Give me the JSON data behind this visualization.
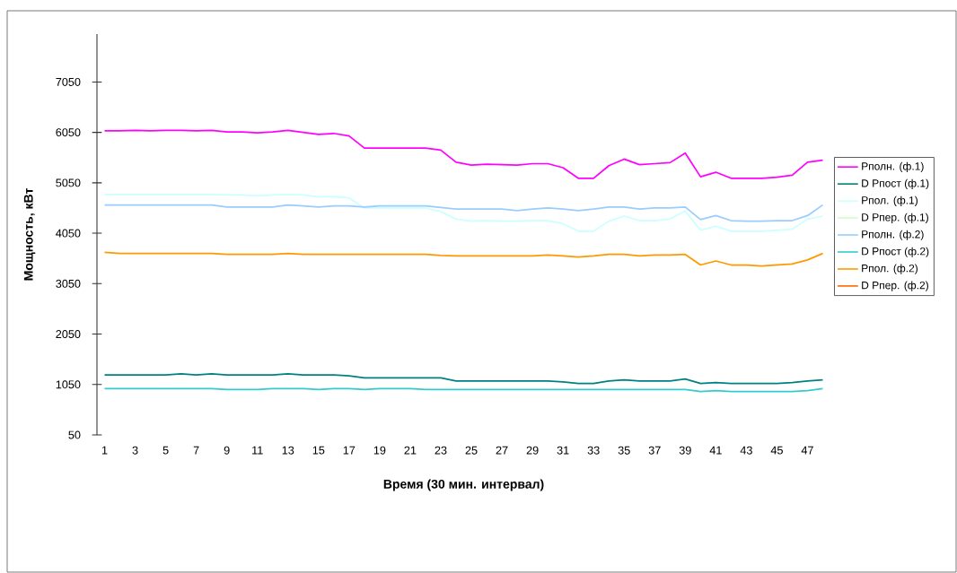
{
  "chart_data": {
    "type": "line",
    "xlabel": "Время (30 мин. интервал)",
    "ylabel": "Мощность, кВт",
    "categories": [
      "1",
      null,
      "3",
      null,
      "5",
      null,
      "7",
      null,
      "9",
      null,
      "11",
      null,
      "13",
      null,
      "15",
      null,
      "17",
      null,
      "19",
      null,
      "21",
      null,
      "23",
      null,
      "25",
      null,
      "27",
      null,
      "29",
      null,
      "31",
      null,
      "33",
      null,
      "35",
      null,
      "37",
      null,
      "39",
      null,
      "41",
      null,
      "43",
      null,
      "45",
      null,
      "47",
      null
    ],
    "ylim": [
      50,
      8000
    ],
    "yticks": [
      50,
      1050,
      2050,
      3050,
      4050,
      5050,
      6050,
      7050
    ],
    "grid": false,
    "legend": "right",
    "marker": "none",
    "line_style": "solid",
    "series": [
      {
        "name": "Рполн. (ф.1)",
        "color": "#ff00ff",
        "values": [
          6080,
          6080,
          6090,
          6080,
          6090,
          6090,
          6080,
          6090,
          6060,
          6060,
          6040,
          6060,
          6090,
          6050,
          6010,
          6030,
          5980,
          5740,
          5740,
          5740,
          5740,
          5740,
          5700,
          5460,
          5400,
          5420,
          5410,
          5400,
          5430,
          5430,
          5350,
          5140,
          5140,
          5390,
          5520,
          5410,
          5430,
          5450,
          5640,
          5170,
          5260,
          5140,
          5140,
          5140,
          5160,
          5200,
          5460,
          5500
        ]
      },
      {
        "name": "D Рпост (ф.1)",
        "color": "#008080",
        "values": [
          1240,
          1240,
          1240,
          1240,
          1240,
          1260,
          1240,
          1260,
          1240,
          1240,
          1240,
          1240,
          1260,
          1240,
          1240,
          1240,
          1220,
          1180,
          1180,
          1180,
          1180,
          1180,
          1180,
          1120,
          1120,
          1120,
          1120,
          1120,
          1120,
          1120,
          1100,
          1070,
          1070,
          1120,
          1140,
          1120,
          1120,
          1120,
          1160,
          1070,
          1090,
          1070,
          1070,
          1070,
          1070,
          1090,
          1120,
          1140
        ]
      },
      {
        "name": "Рпол. (ф.1)",
        "color": "#ccffff",
        "values": [
          4820,
          4820,
          4820,
          4820,
          4820,
          4820,
          4820,
          4820,
          4810,
          4810,
          4790,
          4810,
          4820,
          4810,
          4770,
          4780,
          4750,
          4550,
          4550,
          4550,
          4550,
          4550,
          4480,
          4330,
          4290,
          4300,
          4290,
          4290,
          4300,
          4300,
          4240,
          4090,
          4090,
          4290,
          4390,
          4300,
          4300,
          4330,
          4490,
          4110,
          4190,
          4090,
          4090,
          4090,
          4110,
          4130,
          4330,
          4390
        ]
      },
      {
        "name": "D Рпер. (ф.1)",
        "color": "#ccffcc",
        "values": [
          null,
          null,
          null,
          null,
          null,
          null,
          null,
          null,
          null,
          null,
          null,
          null,
          null,
          null,
          null,
          null,
          null,
          null,
          null,
          null,
          null,
          null,
          null,
          null,
          null,
          null,
          null,
          null,
          null,
          null,
          null,
          null,
          null,
          null,
          null,
          null,
          null,
          null,
          null,
          null,
          null,
          null,
          null,
          null,
          null,
          null,
          null,
          null
        ]
      },
      {
        "name": "Рполн. (ф.2)",
        "color": "#99ccff",
        "values": [
          4610,
          4610,
          4610,
          4610,
          4610,
          4610,
          4610,
          4610,
          4570,
          4570,
          4570,
          4570,
          4610,
          4590,
          4570,
          4590,
          4590,
          4570,
          4590,
          4590,
          4590,
          4590,
          4560,
          4530,
          4530,
          4530,
          4530,
          4500,
          4530,
          4550,
          4530,
          4500,
          4530,
          4570,
          4570,
          4530,
          4550,
          4550,
          4570,
          4320,
          4400,
          4300,
          4290,
          4290,
          4300,
          4300,
          4400,
          4610
        ]
      },
      {
        "name": "D Рпост (ф.2)",
        "color": "#33cccc",
        "values": [
          970,
          970,
          970,
          970,
          970,
          970,
          970,
          970,
          950,
          950,
          950,
          970,
          970,
          970,
          950,
          970,
          970,
          950,
          970,
          970,
          970,
          950,
          950,
          950,
          950,
          950,
          950,
          950,
          950,
          950,
          950,
          950,
          950,
          950,
          950,
          950,
          950,
          950,
          950,
          910,
          930,
          910,
          910,
          910,
          910,
          910,
          930,
          970
        ]
      },
      {
        "name": "Рпол. (ф.2)",
        "color": "#ff9900",
        "values": [
          3670,
          3650,
          3650,
          3650,
          3650,
          3650,
          3650,
          3650,
          3630,
          3630,
          3630,
          3630,
          3650,
          3630,
          3630,
          3630,
          3630,
          3630,
          3630,
          3630,
          3630,
          3630,
          3610,
          3600,
          3600,
          3600,
          3600,
          3600,
          3600,
          3620,
          3600,
          3580,
          3600,
          3630,
          3630,
          3600,
          3620,
          3620,
          3630,
          3420,
          3500,
          3420,
          3420,
          3400,
          3420,
          3440,
          3520,
          3650
        ]
      },
      {
        "name": "D Рпер. (ф.2)",
        "color": "#ff6600",
        "values": [
          null,
          null,
          null,
          null,
          null,
          null,
          null,
          null,
          null,
          null,
          null,
          null,
          null,
          null,
          null,
          null,
          null,
          null,
          null,
          null,
          null,
          null,
          null,
          null,
          null,
          null,
          null,
          null,
          null,
          null,
          null,
          null,
          null,
          null,
          null,
          null,
          null,
          null,
          null,
          null,
          null,
          null,
          null,
          null,
          null,
          null,
          null,
          null
        ]
      }
    ]
  }
}
